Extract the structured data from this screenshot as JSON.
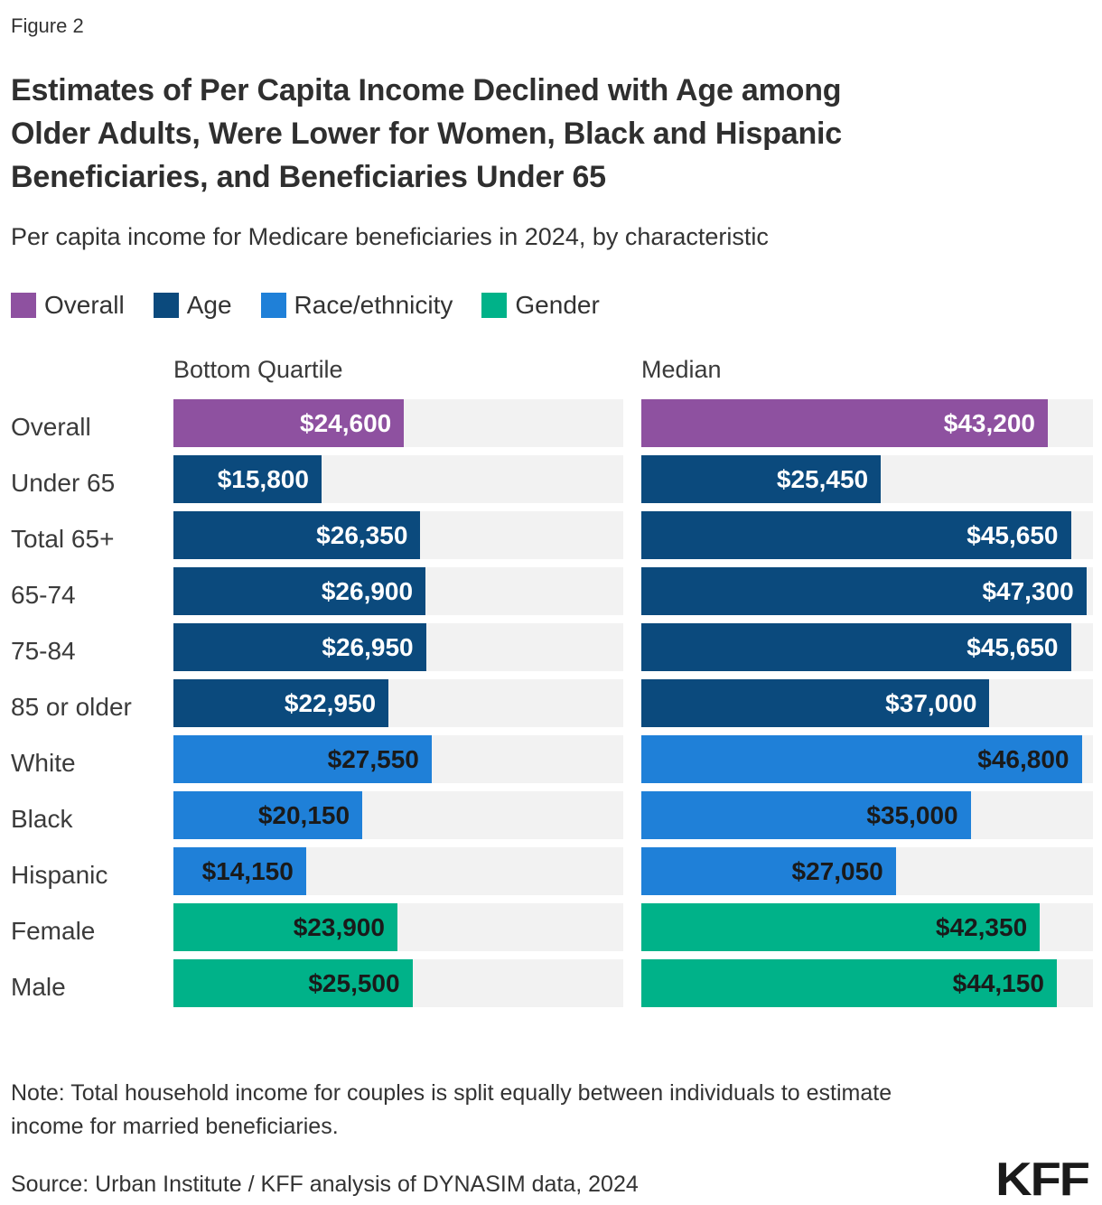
{
  "figure_label": "Figure 2",
  "title": "Estimates of Per Capita Income Declined with Age among\nOlder Adults, Were Lower for Women, Black and Hispanic\nBeneficiaries, and Beneficiaries Under 65",
  "subtitle": "Per capita income for Medicare beneficiaries in 2024, by characteristic",
  "legend": [
    {
      "label": "Overall",
      "color": "#8e51a0",
      "value_text_color": "#ffffff"
    },
    {
      "label": "Age",
      "color": "#0b4a7d",
      "value_text_color": "#ffffff"
    },
    {
      "label": "Race/ethnicity",
      "color": "#1f80d8",
      "value_text_color": "#1a1a1a"
    },
    {
      "label": "Gender",
      "color": "#00b289",
      "value_text_color": "#1a1a1a"
    }
  ],
  "columns": [
    "Bottom Quartile",
    "Median"
  ],
  "chart_data": {
    "type": "bar",
    "orientation": "horizontal",
    "panels": [
      "Bottom Quartile",
      "Median"
    ],
    "xlim": [
      0,
      48000
    ],
    "grid": false,
    "track_color": "#f2f2f2",
    "categories": [
      "Overall",
      "Under 65",
      "Total 65+",
      "65-74",
      "75-84",
      "85 or older",
      "White",
      "Black",
      "Hispanic",
      "Female",
      "Male"
    ],
    "category_groups": [
      "Overall",
      "Age",
      "Age",
      "Age",
      "Age",
      "Age",
      "Race/ethnicity",
      "Race/ethnicity",
      "Race/ethnicity",
      "Gender",
      "Gender"
    ],
    "series": [
      {
        "name": "Bottom Quartile",
        "values": [
          24600,
          15800,
          26350,
          26900,
          26950,
          22950,
          27550,
          20150,
          14150,
          23900,
          25500
        ]
      },
      {
        "name": "Median",
        "values": [
          43200,
          25450,
          45650,
          47300,
          45650,
          37000,
          46800,
          35000,
          27050,
          42350,
          44150
        ]
      }
    ],
    "value_label_format": "$#,###"
  },
  "note": "Note: Total household income for couples is split equally between individuals to estimate\nincome for married beneficiaries.",
  "source": "Source: Urban Institute / KFF analysis of DYNASIM data, 2024",
  "logo": "KFF"
}
